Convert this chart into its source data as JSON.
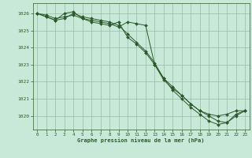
{
  "title": "Graphe pression niveau de la mer (hPa)",
  "bg_color": "#c8e8d8",
  "grid_color": "#99bbaa",
  "line_color": "#2d5a2d",
  "marker_color": "#2d5a2d",
  "xlim": [
    -0.5,
    23.5
  ],
  "ylim": [
    1019.2,
    1026.6
  ],
  "yticks": [
    1020,
    1021,
    1022,
    1023,
    1024,
    1025,
    1026
  ],
  "xticks": [
    0,
    1,
    2,
    3,
    4,
    5,
    6,
    7,
    8,
    9,
    10,
    11,
    12,
    13,
    14,
    15,
    16,
    17,
    18,
    19,
    20,
    21,
    22,
    23
  ],
  "series": [
    [
      1026.0,
      1025.9,
      1025.7,
      1025.8,
      1025.9,
      1025.7,
      1025.6,
      1025.5,
      1025.4,
      1025.2,
      1025.5,
      1025.4,
      1025.3,
      1023.0,
      1022.1,
      1021.6,
      1021.2,
      1020.7,
      1020.3,
      1020.1,
      1020.0,
      1020.1,
      1020.3,
      1020.3
    ],
    [
      1026.0,
      1025.8,
      1025.6,
      1026.0,
      1026.1,
      1025.7,
      1025.5,
      1025.4,
      1025.3,
      1025.5,
      1024.6,
      1024.2,
      1023.7,
      1023.0,
      1022.2,
      1021.7,
      1021.2,
      1020.7,
      1020.3,
      1020.0,
      1019.7,
      1019.6,
      1020.0,
      1020.3
    ],
    [
      1026.0,
      1025.8,
      1025.6,
      1025.7,
      1026.0,
      1025.8,
      1025.7,
      1025.6,
      1025.5,
      1025.3,
      1024.8,
      1024.3,
      1023.8,
      1023.1,
      1022.2,
      1021.5,
      1021.0,
      1020.5,
      1020.1,
      1019.7,
      1019.5,
      1019.6,
      1020.1,
      1020.3
    ]
  ]
}
